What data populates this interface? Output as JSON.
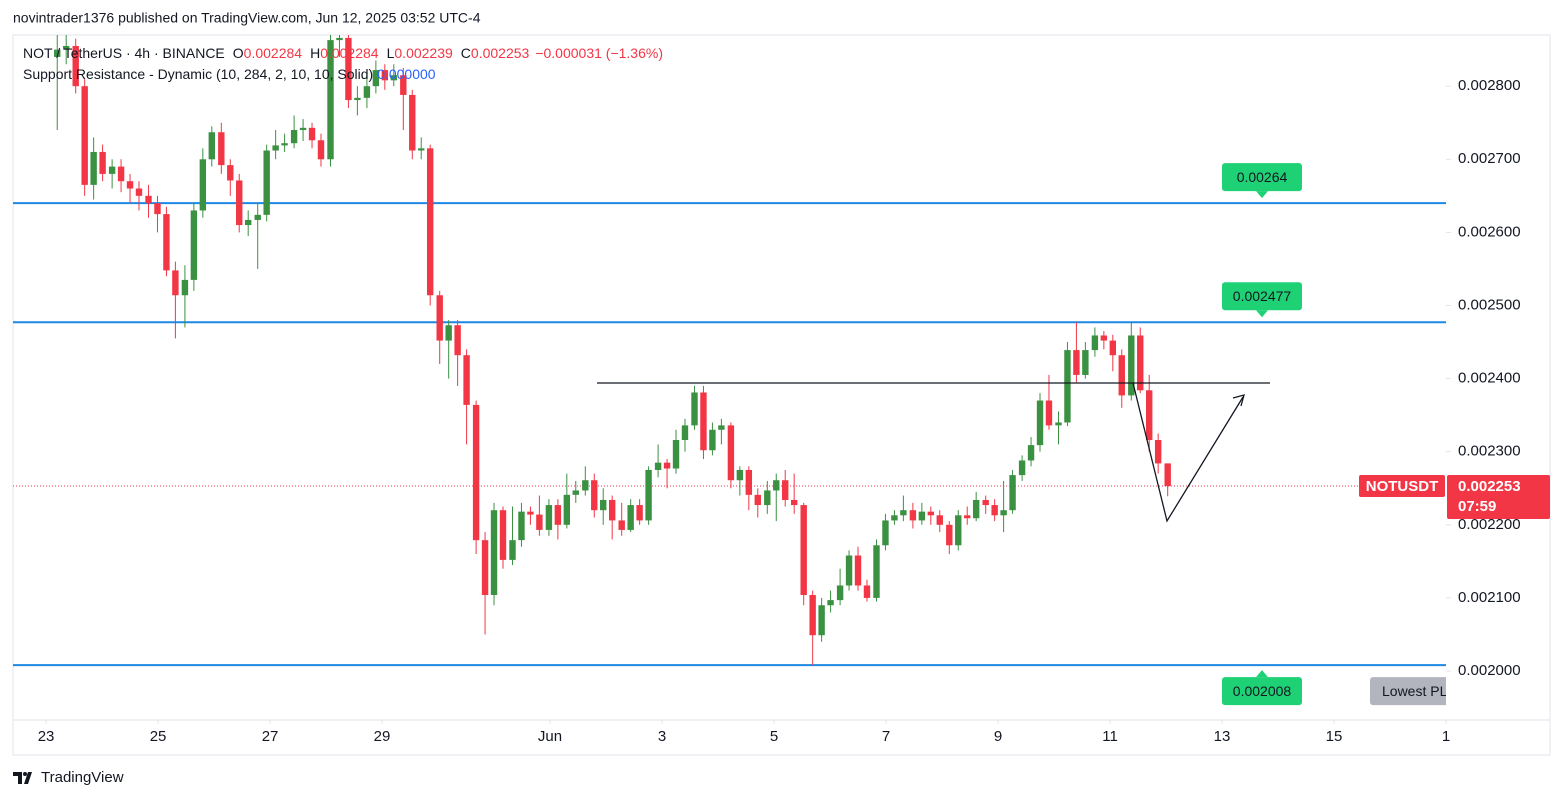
{
  "attribution": "novintrader1376 published on TradingView.com, Jun 12, 2025 03:52 UTC-4",
  "footer": "TradingView",
  "chart_data": {
    "type": "candlestick",
    "legend": {
      "symbol": "NOT / TetherUS · 4h · BINANCE",
      "ohlc": [
        {
          "label": "O",
          "value": "0.002284"
        },
        {
          "label": "H",
          "value": "0.002284"
        },
        {
          "label": "L",
          "value": "0.002239"
        },
        {
          "label": "C",
          "value": "0.002253"
        }
      ],
      "change": "−0.000031 (−1.36%)",
      "indicator": "Support Resistance - Dynamic (10, 284, 2, 10, 10, Solid)",
      "indicator_value": "0.000000"
    },
    "x": [
      23.2,
      23.36,
      23.53,
      23.69,
      23.85,
      24.01,
      24.18,
      24.34,
      24.5,
      24.66,
      24.83,
      24.99,
      25.15,
      25.31,
      25.48,
      25.64,
      25.8,
      25.96,
      26.13,
      26.29,
      26.45,
      26.61,
      26.78,
      26.94,
      27.1,
      27.26,
      27.43,
      27.59,
      27.75,
      27.91,
      28.08,
      28.24,
      28.4,
      28.56,
      28.73,
      28.89,
      29.05,
      29.21,
      29.38,
      29.54,
      29.7,
      29.86,
      30.03,
      30.19,
      30.35,
      30.51,
      30.68,
      30.84,
      31,
      31.16,
      31.33,
      31.49,
      31.65,
      31.81,
      31.98,
      32.14,
      32.3,
      32.46,
      32.63,
      32.79,
      32.95,
      33.11,
      33.28,
      33.44,
      33.6,
      33.76,
      33.93,
      34.09,
      34.25,
      34.41,
      34.58,
      34.74,
      34.9,
      35.06,
      35.23,
      35.39,
      35.55,
      35.71,
      35.88,
      36.04,
      36.2,
      36.36,
      36.53,
      36.69,
      36.85,
      37.01,
      37.18,
      37.34,
      37.5,
      37.66,
      37.83,
      37.99,
      38.15,
      38.31,
      38.48,
      38.64,
      38.8,
      38.96,
      39.13,
      39.29,
      39.45,
      39.61,
      39.78,
      39.94,
      40.1,
      40.26,
      40.43,
      40.59,
      40.75,
      40.91,
      41.08,
      41.24,
      41.4,
      41.56,
      41.73,
      41.89,
      42.05,
      42.21,
      42.38,
      42.54,
      42.7,
      42.86,
      43.03
    ],
    "open": [
      0.00284,
      0.00285,
      0.002855,
      0.0028,
      0.002665,
      0.00271,
      0.00268,
      0.00269,
      0.00267,
      0.00266,
      0.00265,
      0.00264,
      0.002625,
      0.002548,
      0.002514,
      0.002535,
      0.00263,
      0.0027,
      0.002737,
      0.002692,
      0.002671,
      0.00261,
      0.002617,
      0.002624,
      0.002712,
      0.002719,
      0.002722,
      0.00274,
      0.002743,
      0.002726,
      0.0027,
      0.002863,
      0.002866,
      0.002781,
      0.002784,
      0.0028,
      0.002822,
      0.002808,
      0.002815,
      0.002788,
      0.002712,
      0.002715,
      0.002514,
      0.002452,
      0.002473,
      0.002432,
      0.002364,
      0.002179,
      0.002104,
      0.00222,
      0.002152,
      0.002179,
      0.002218,
      0.002214,
      0.002193,
      0.002227,
      0.0022,
      0.002241,
      0.002247,
      0.002261,
      0.00222,
      0.002234,
      0.002206,
      0.002193,
      0.002227,
      0.002206,
      0.002275,
      0.002285,
      0.002277,
      0.002316,
      0.002336,
      0.002381,
      0.002302,
      0.00233,
      0.002336,
      0.002261,
      0.002275,
      0.002241,
      0.002227,
      0.002247,
      0.002261,
      0.002234,
      0.002227,
      0.002104,
      0.002049,
      0.00209,
      0.002097,
      0.002117,
      0.002158,
      0.002117,
      0.0021,
      0.002172,
      0.002206,
      0.002213,
      0.00222,
      0.002206,
      0.002218,
      0.002213,
      0.0022,
      0.002172,
      0.002213,
      0.002209,
      0.002234,
      0.002227,
      0.002213,
      0.00222,
      0.002268,
      0.002288,
      0.002309,
      0.00237,
      0.002336,
      0.00234,
      0.002439,
      0.002405,
      0.002439,
      0.002459,
      0.002452,
      0.002432,
      0.002377,
      0.002459,
      0.002384,
      0.002316,
      0.002284
    ],
    "high": [
      0.00287,
      0.00287,
      0.002865,
      0.00281,
      0.00273,
      0.00272,
      0.0027,
      0.0027,
      0.00268,
      0.00267,
      0.002665,
      0.00265,
      0.002635,
      0.00256,
      0.002555,
      0.00264,
      0.002715,
      0.002745,
      0.00275,
      0.0027,
      0.00268,
      0.00263,
      0.00264,
      0.00272,
      0.00274,
      0.002735,
      0.00276,
      0.002755,
      0.00275,
      0.002735,
      0.00287,
      0.00287,
      0.00287,
      0.0028,
      0.002815,
      0.002835,
      0.00283,
      0.00283,
      0.002825,
      0.002795,
      0.00273,
      0.00272,
      0.00252,
      0.00248,
      0.00248,
      0.00244,
      0.00237,
      0.00219,
      0.00223,
      0.002225,
      0.002225,
      0.00223,
      0.002225,
      0.00224,
      0.002235,
      0.002235,
      0.00227,
      0.00226,
      0.00228,
      0.00227,
      0.00225,
      0.00224,
      0.00223,
      0.002235,
      0.002235,
      0.00228,
      0.00231,
      0.00229,
      0.00233,
      0.002345,
      0.00239,
      0.00239,
      0.00234,
      0.002345,
      0.00234,
      0.00228,
      0.00228,
      0.00225,
      0.00226,
      0.00227,
      0.002275,
      0.00227,
      0.00223,
      0.00211,
      0.0021,
      0.00211,
      0.00214,
      0.002165,
      0.00217,
      0.002125,
      0.00218,
      0.002215,
      0.00222,
      0.00224,
      0.00223,
      0.00223,
      0.002225,
      0.00222,
      0.002205,
      0.00222,
      0.002225,
      0.002245,
      0.00224,
      0.002235,
      0.00226,
      0.002275,
      0.002295,
      0.00232,
      0.00238,
      0.002405,
      0.002355,
      0.00245,
      0.002477,
      0.00245,
      0.00247,
      0.002465,
      0.00246,
      0.00244,
      0.002477,
      0.00247,
      0.002405,
      0.002325,
      0.002284
    ],
    "low": [
      0.00274,
      0.00283,
      0.00279,
      0.00265,
      0.002645,
      0.00267,
      0.00266,
      0.002655,
      0.00264,
      0.00263,
      0.00262,
      0.0026,
      0.00254,
      0.002455,
      0.00247,
      0.00252,
      0.00262,
      0.00269,
      0.00268,
      0.00265,
      0.0026,
      0.002595,
      0.00255,
      0.002615,
      0.0027,
      0.00271,
      0.002715,
      0.002725,
      0.002715,
      0.00269,
      0.00269,
      0.00284,
      0.00277,
      0.00276,
      0.00277,
      0.00279,
      0.002795,
      0.0028,
      0.00274,
      0.0027,
      0.0027,
      0.0025,
      0.00242,
      0.0024,
      0.00239,
      0.00231,
      0.00216,
      0.00205,
      0.00209,
      0.00214,
      0.002145,
      0.00217,
      0.0022,
      0.002185,
      0.002185,
      0.00218,
      0.002195,
      0.00223,
      0.00224,
      0.00221,
      0.0022,
      0.00218,
      0.002185,
      0.00219,
      0.0022,
      0.0022,
      0.002265,
      0.00225,
      0.00227,
      0.0023,
      0.00233,
      0.00229,
      0.002295,
      0.00231,
      0.00225,
      0.00224,
      0.00222,
      0.00221,
      0.002215,
      0.002205,
      0.002225,
      0.002215,
      0.00209,
      0.002008,
      0.00204,
      0.00208,
      0.00209,
      0.00211,
      0.00211,
      0.002095,
      0.002095,
      0.002165,
      0.0022,
      0.002205,
      0.002195,
      0.0022,
      0.0022,
      0.00219,
      0.00216,
      0.002165,
      0.0022,
      0.002205,
      0.002215,
      0.002205,
      0.00219,
      0.002215,
      0.00226,
      0.00228,
      0.0023,
      0.00233,
      0.00231,
      0.002335,
      0.002395,
      0.0024,
      0.00243,
      0.00244,
      0.00241,
      0.00236,
      0.00237,
      0.00238,
      0.0023,
      0.00227,
      0.002239
    ],
    "close": [
      0.00285,
      0.002855,
      0.0028,
      0.002665,
      0.00271,
      0.00268,
      0.00269,
      0.00267,
      0.00266,
      0.00265,
      0.00264,
      0.002625,
      0.002548,
      0.002514,
      0.002535,
      0.00263,
      0.0027,
      0.002737,
      0.002692,
      0.002671,
      0.00261,
      0.002617,
      0.002624,
      0.002712,
      0.002719,
      0.002722,
      0.00274,
      0.002743,
      0.002726,
      0.0027,
      0.002863,
      0.002866,
      0.002781,
      0.002784,
      0.0028,
      0.002822,
      0.002808,
      0.002815,
      0.002788,
      0.002712,
      0.002715,
      0.002514,
      0.002452,
      0.002473,
      0.002432,
      0.002364,
      0.002179,
      0.002104,
      0.00222,
      0.002152,
      0.002179,
      0.002218,
      0.002214,
      0.002193,
      0.002227,
      0.0022,
      0.002241,
      0.002247,
      0.002261,
      0.00222,
      0.002234,
      0.002206,
      0.002193,
      0.002227,
      0.002206,
      0.002275,
      0.002285,
      0.002277,
      0.002316,
      0.002336,
      0.002381,
      0.002302,
      0.00233,
      0.002336,
      0.002261,
      0.002275,
      0.002241,
      0.002227,
      0.002247,
      0.002261,
      0.002234,
      0.002227,
      0.002104,
      0.002049,
      0.00209,
      0.002097,
      0.002117,
      0.002158,
      0.002117,
      0.0021,
      0.002172,
      0.002206,
      0.002213,
      0.00222,
      0.002206,
      0.002218,
      0.002213,
      0.0022,
      0.002172,
      0.002213,
      0.002209,
      0.002234,
      0.002227,
      0.002213,
      0.00222,
      0.002268,
      0.002288,
      0.002309,
      0.00237,
      0.002336,
      0.00234,
      0.002439,
      0.002405,
      0.002439,
      0.002459,
      0.002452,
      0.002432,
      0.002377,
      0.002459,
      0.002384,
      0.002316,
      0.002284,
      0.002253
    ],
    "up_color": "#3b9142",
    "down_color": "#f23645",
    "levels": [
      0.00264,
      0.002477,
      0.002008
    ],
    "level_color": "#1e88e5",
    "level_label_color": "#1fd175",
    "lowest_label": "Lowest PL",
    "symbol_tag": "NOTUSDT",
    "last_price": 0.002253,
    "countdown": "07:59",
    "xlim": [
      22.41,
      48
    ],
    "xticks": [
      23,
      25,
      27,
      29,
      {
        "value": 32,
        "label": "Jun"
      },
      {
        "value": 34,
        "label": "3"
      },
      {
        "value": 36,
        "label": "5"
      },
      {
        "value": 38,
        "label": "7"
      },
      {
        "value": 40,
        "label": "9"
      },
      {
        "value": 42,
        "label": "11"
      },
      {
        "value": 44,
        "label": "13"
      },
      {
        "value": 46,
        "label": "15"
      },
      {
        "value": 48,
        "label": "1"
      }
    ],
    "ylim": [
      0.001933,
      0.00287
    ],
    "yticks": [
      {
        "value": 0.002,
        "label": "0.002000"
      },
      {
        "value": 0.0021,
        "label": "0.002100"
      },
      {
        "value": 0.0022,
        "label": "0.002200"
      },
      {
        "value": 0.0023,
        "label": "0.002300"
      },
      {
        "value": 0.0024,
        "label": "0.002400"
      },
      {
        "value": 0.0025,
        "label": "0.002500"
      },
      {
        "value": 0.0026,
        "label": "0.002600"
      },
      {
        "value": 0.0027,
        "label": "0.002700"
      },
      {
        "value": 0.0028,
        "label": "0.002800"
      }
    ],
    "grid": false
  }
}
